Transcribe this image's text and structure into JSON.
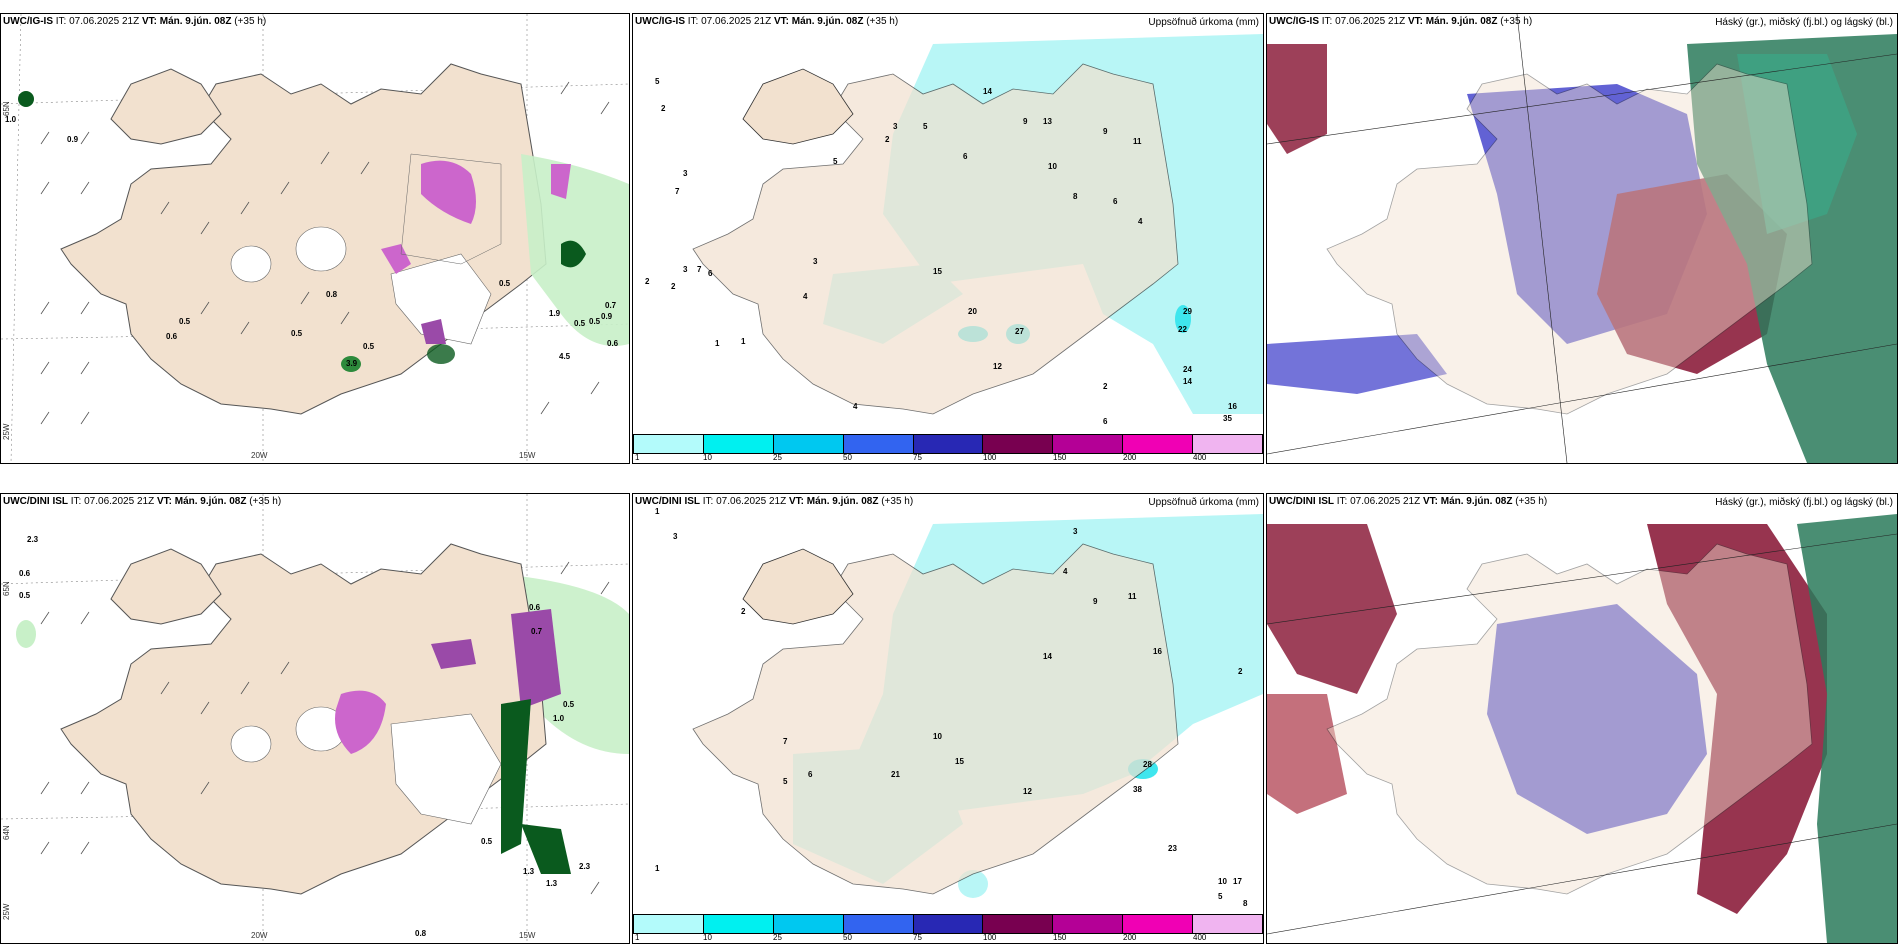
{
  "rows": [
    {
      "model": "UWC/IG-IS",
      "it_label": "IT:",
      "it": "07.06.2025 21Z",
      "vt_label": "VT:",
      "vt": "Mán. 9.jún. 08Z",
      "lead": "(+35 h)"
    },
    {
      "model": "UWC/DINI ISL",
      "it_label": "IT:",
      "it": "07.06.2025 21Z",
      "vt_label": "VT:",
      "vt": "Mán. 9.jún. 08Z",
      "lead": "(+35 h)"
    }
  ],
  "precip_title": "Uppsöfnuð úrkoma (mm)",
  "cloud_title": "Háský (gr.), miðský (fj.bl.) og lágský (bl.)",
  "colorbar": {
    "ticks": [
      "1",
      "10",
      "25",
      "50",
      "75",
      "100",
      "150",
      "200",
      "400"
    ],
    "colors": [
      "#b3fbfb",
      "#00f0f0",
      "#00c8f0",
      "#3264f0",
      "#2828b4",
      "#780050",
      "#b40096",
      "#f000b4",
      "#f0b4f0"
    ]
  },
  "grid_labels": {
    "lon_20w": "20W",
    "lon_15w": "15W",
    "lon_25w": "25W",
    "lat_65n": "65N",
    "lat_64n": "64N"
  },
  "top_left_values": [
    "1.0",
    "0.9",
    "0.8",
    "0.5",
    "0.6",
    "0.5",
    "0.5",
    "3.9",
    "0.5",
    "0.5",
    "0.7",
    "0.9",
    "0.5",
    "0.6",
    "4.5",
    "1.9"
  ],
  "bottom_left_values": [
    "2.3",
    "0.6",
    "0.5",
    "0.6",
    "0.7",
    "0.5",
    "1.0",
    "0.5",
    "1.3",
    "1.3",
    "2.3",
    "0.8"
  ],
  "top_precip_values": [
    "5",
    "2",
    "3",
    "2",
    "7",
    "3",
    "7",
    "6",
    "2",
    "1",
    "1",
    "4",
    "5",
    "3",
    "2",
    "5",
    "6",
    "14",
    "15",
    "9",
    "10",
    "13",
    "8",
    "20",
    "27",
    "12",
    "22",
    "29",
    "24",
    "14",
    "16",
    "35",
    "6",
    "4",
    "3",
    "9",
    "11",
    "6",
    "4",
    "2"
  ],
  "bottom_precip_values": [
    "1",
    "3",
    "2",
    "1",
    "5",
    "6",
    "7",
    "21",
    "15",
    "10",
    "14",
    "16",
    "12",
    "28",
    "38",
    "23",
    "17",
    "10",
    "5",
    "8",
    "2",
    "3",
    "4",
    "9",
    "11"
  ],
  "colors": {
    "land": "#f2e1cf",
    "cyan": "#b8f6f6",
    "cyan_mid": "#3fe6ee",
    "green_light": "#c8f0c8",
    "green_dark": "#0a5a1e",
    "purple": "#cc66cc",
    "blue_cloud": "#5a5ad2",
    "red_cloud": "#8c1e3c",
    "green_cloud": "#2a7a5a"
  }
}
